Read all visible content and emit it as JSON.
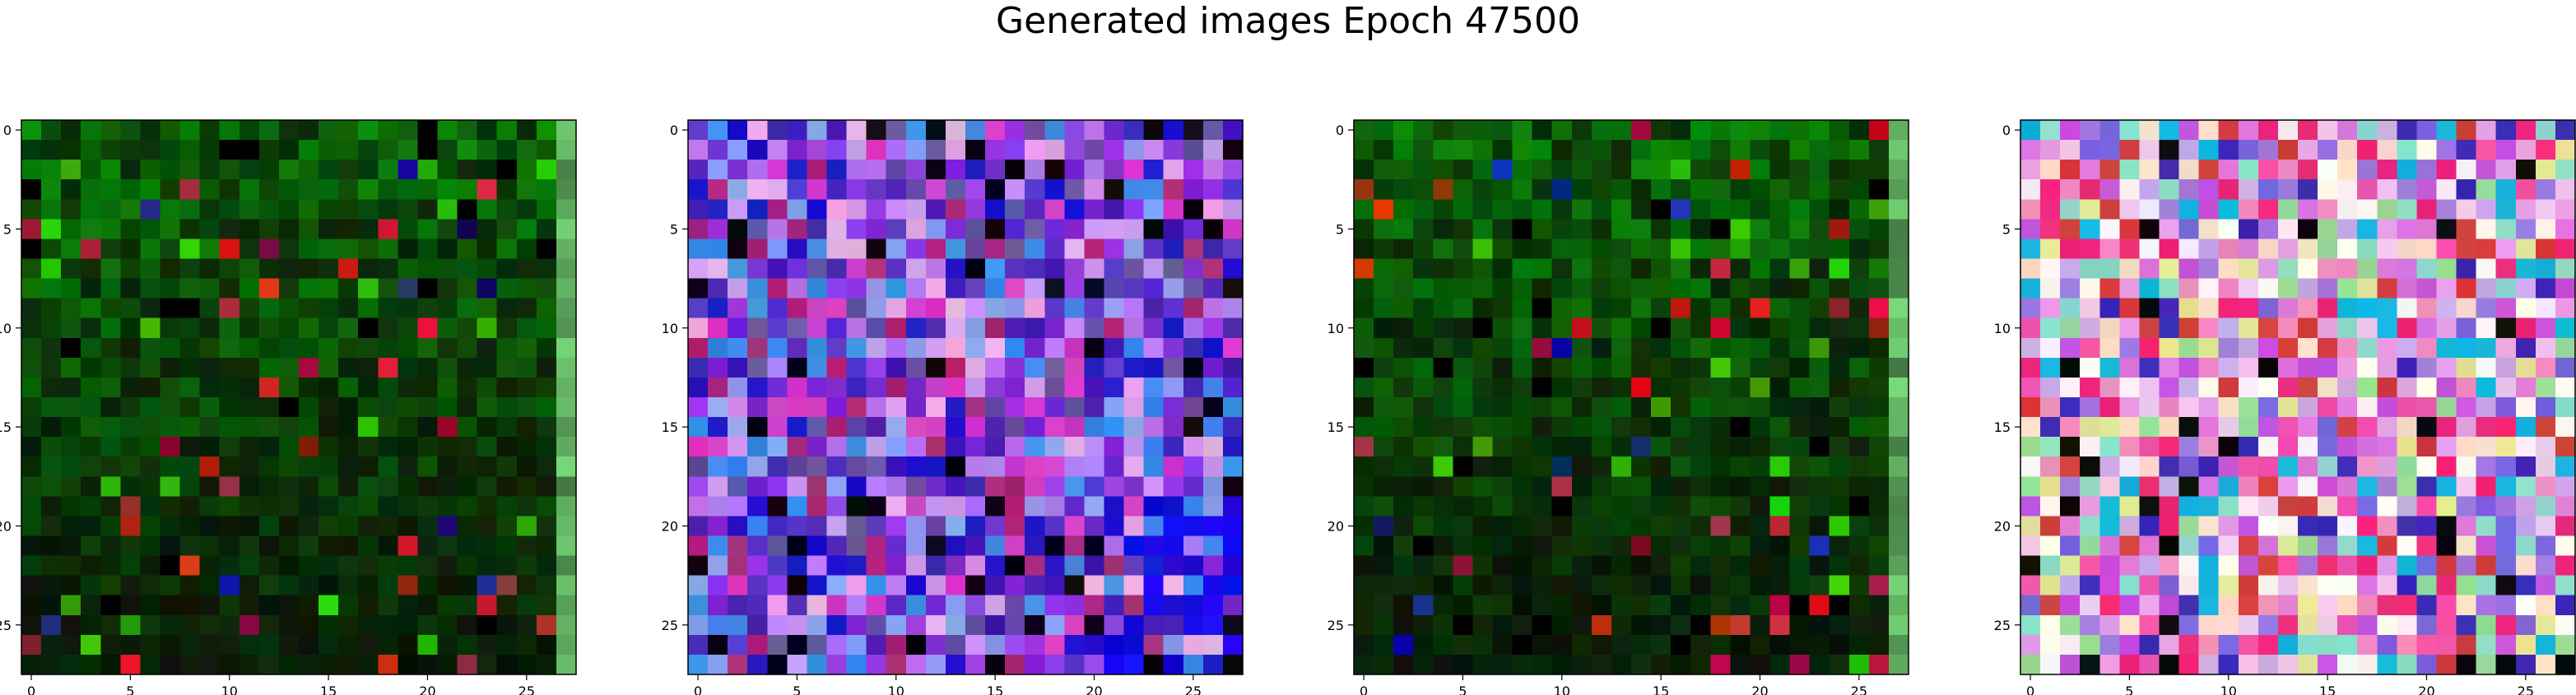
{
  "figure": {
    "title": "Generated images Epoch 47500"
  },
  "chart_data": [
    {
      "type": "heatmap",
      "name": "generated-image-1",
      "grid": [
        28,
        28
      ],
      "palette": "green-dominant",
      "base_color": "#0b4a0b",
      "x_ticks": [
        "0",
        "5",
        "10",
        "15",
        "20",
        "25"
      ],
      "y_ticks": [
        "0",
        "5",
        "10",
        "15",
        "20",
        "25"
      ],
      "xlim": [
        -0.5,
        27.5
      ],
      "ylim": [
        27.5,
        -0.5
      ]
    },
    {
      "type": "heatmap",
      "name": "generated-image-2",
      "grid": [
        28,
        28
      ],
      "palette": "purple-blue",
      "base_color": "#7a30e0",
      "x_ticks": [
        "0",
        "5",
        "10",
        "15",
        "20",
        "25"
      ],
      "y_ticks": [
        "0",
        "5",
        "10",
        "15",
        "20",
        "25"
      ],
      "xlim": [
        -0.5,
        27.5
      ],
      "ylim": [
        27.5,
        -0.5
      ]
    },
    {
      "type": "heatmap",
      "name": "generated-image-3",
      "grid": [
        28,
        28
      ],
      "palette": "green-dominant",
      "base_color": "#0a4a0a",
      "x_ticks": [
        "0",
        "5",
        "10",
        "15",
        "20",
        "25"
      ],
      "y_ticks": [
        "0",
        "5",
        "10",
        "15",
        "20",
        "25"
      ],
      "xlim": [
        -0.5,
        27.5
      ],
      "ylim": [
        27.5,
        -0.5
      ]
    },
    {
      "type": "heatmap",
      "name": "generated-image-4",
      "grid": [
        28,
        28
      ],
      "palette": "pastel-pink",
      "base_color": "#e0a0e0",
      "x_ticks": [
        "0",
        "5",
        "10",
        "15",
        "20",
        "25"
      ],
      "y_ticks": [
        "0",
        "5",
        "10",
        "15",
        "20",
        "25"
      ],
      "xlim": [
        -0.5,
        27.5
      ],
      "ylim": [
        27.5,
        -0.5
      ]
    }
  ]
}
